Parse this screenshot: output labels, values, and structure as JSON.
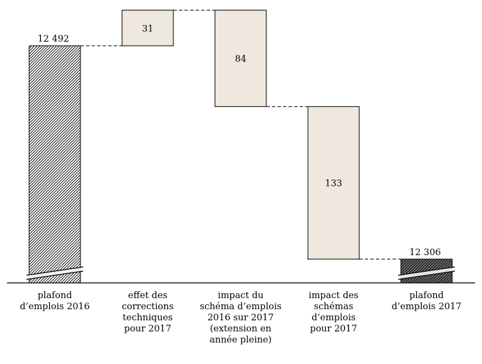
{
  "chart_data": {
    "type": "waterfall",
    "title": "",
    "xlabel": "",
    "ylabel": "",
    "bars": [
      {
        "kind": "total",
        "label_lines": [
          "plafond",
          "d’emplois 2016"
        ],
        "value": 12492,
        "value_label": "12 492",
        "pattern": "hatch-light"
      },
      {
        "kind": "increase",
        "label_lines": [
          "effet des",
          "corrections",
          "techniques",
          "pour 2017"
        ],
        "value": 31,
        "value_label": "31"
      },
      {
        "kind": "decrease",
        "label_lines": [
          "impact du",
          "schéma d’emplois",
          "2016 sur 2017",
          "(extension en",
          "année pleine)"
        ],
        "value": 84,
        "value_label": "84"
      },
      {
        "kind": "decrease",
        "label_lines": [
          "impact des",
          "schémas",
          "d’emplois",
          "pour 2017"
        ],
        "value": 133,
        "value_label": "133"
      },
      {
        "kind": "total",
        "label_lines": [
          "plafond",
          "d’emplois 2017"
        ],
        "value": 12306,
        "value_label": "12 306",
        "pattern": "hatch-dark"
      }
    ],
    "axis_break": true,
    "ylim": [
      12280,
      12523
    ],
    "grid": false,
    "legend": "none",
    "colors": {
      "change_fill": "#efe8df",
      "outline": "#000000",
      "connector": "#000000",
      "hatch_light_bg": "#ffffff",
      "hatch_dark_bg": "#7a7a7a"
    }
  }
}
